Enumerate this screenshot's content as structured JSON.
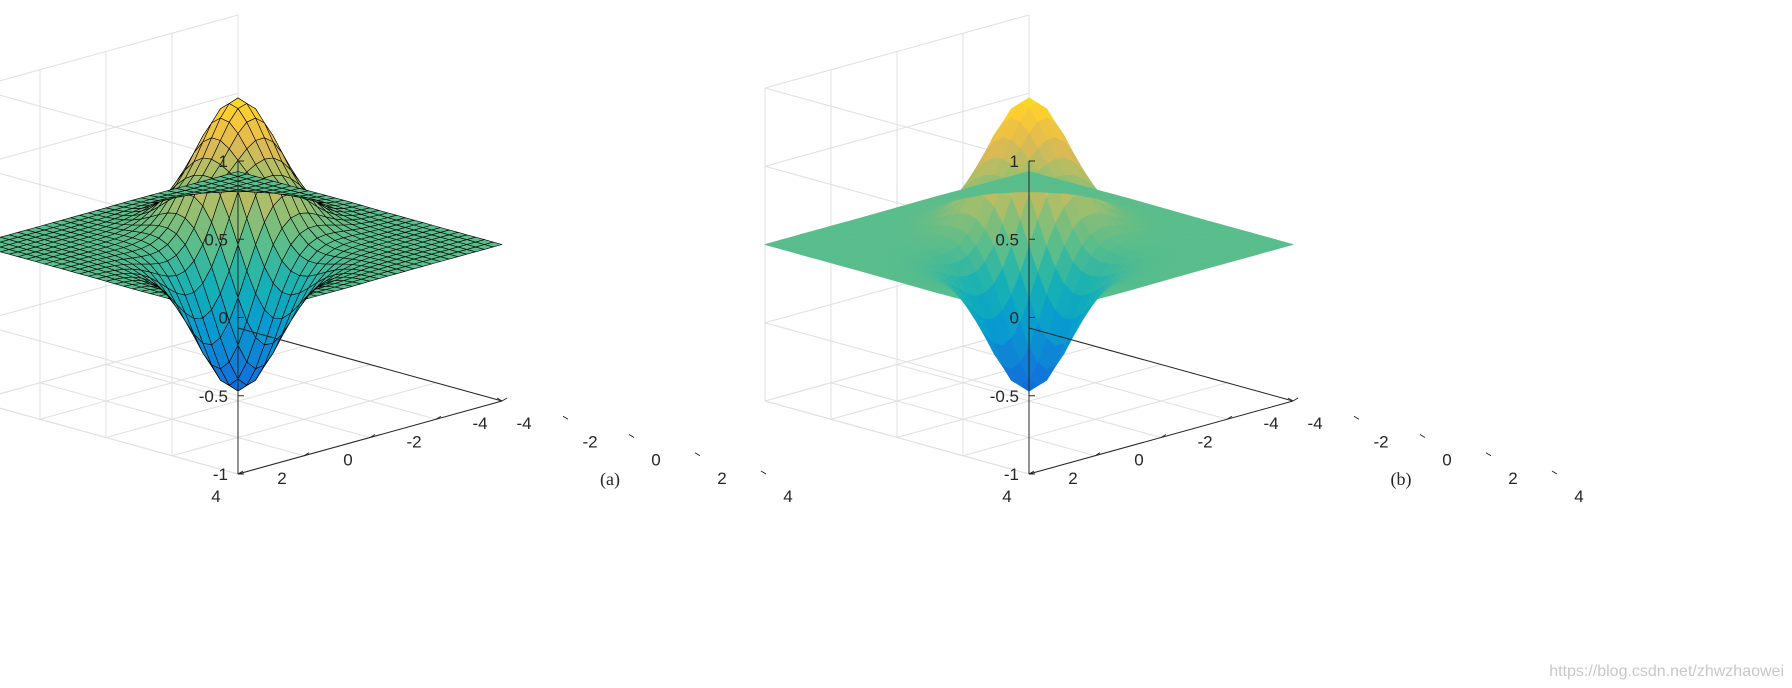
{
  "chart_data": [
    {
      "type": "surface",
      "caption": "(a)",
      "edge_color": "#000000",
      "shading": "faceted",
      "x": {
        "ticks": [
          -4,
          -2,
          0,
          2,
          4
        ],
        "tick_labels": [
          "-4",
          "-2",
          "0",
          "2",
          "4"
        ],
        "lim": [
          -4,
          4
        ]
      },
      "y": {
        "ticks": [
          -4,
          -2,
          0,
          2,
          4
        ],
        "tick_labels": [
          "-4",
          "-2",
          "0",
          "2",
          "4"
        ],
        "lim": [
          -4,
          4
        ]
      },
      "z": {
        "ticks": [
          -1,
          -0.5,
          0,
          0.5,
          1
        ],
        "tick_labels": [
          "-1",
          "-0.5",
          "0",
          "0.5",
          "1"
        ],
        "lim": [
          -1,
          1
        ]
      },
      "grid": true,
      "colormap": "parula",
      "peak": {
        "x": 1,
        "y": -1,
        "z": 0.82
      },
      "trough": {
        "x": -1,
        "y": 1,
        "z": -0.82
      }
    },
    {
      "type": "surface",
      "caption": "(b)",
      "edge_color": "none",
      "shading": "interp",
      "x": {
        "ticks": [
          -4,
          -2,
          0,
          2,
          4
        ],
        "tick_labels": [
          "-4",
          "-2",
          "0",
          "2",
          "4"
        ],
        "lim": [
          -4,
          4
        ]
      },
      "y": {
        "ticks": [
          -4,
          -2,
          0,
          2,
          4
        ],
        "tick_labels": [
          "-4",
          "-2",
          "0",
          "2",
          "4"
        ],
        "lim": [
          -4,
          4
        ]
      },
      "z": {
        "ticks": [
          -1,
          -0.5,
          0,
          0.5,
          1
        ],
        "tick_labels": [
          "-1",
          "-0.5",
          "0",
          "0.5",
          "1"
        ],
        "lim": [
          -1,
          1
        ]
      },
      "grid": true,
      "colormap": "parula",
      "peak": {
        "x": 1,
        "y": -1,
        "z": 0.82
      },
      "trough": {
        "x": -1,
        "y": 1,
        "z": -0.82
      }
    }
  ],
  "watermark": "https://blog.csdn.net/zhwzhaowei",
  "colors": {
    "axis": "#262626",
    "grid": "#e0e0e0",
    "background": "#ffffff"
  }
}
